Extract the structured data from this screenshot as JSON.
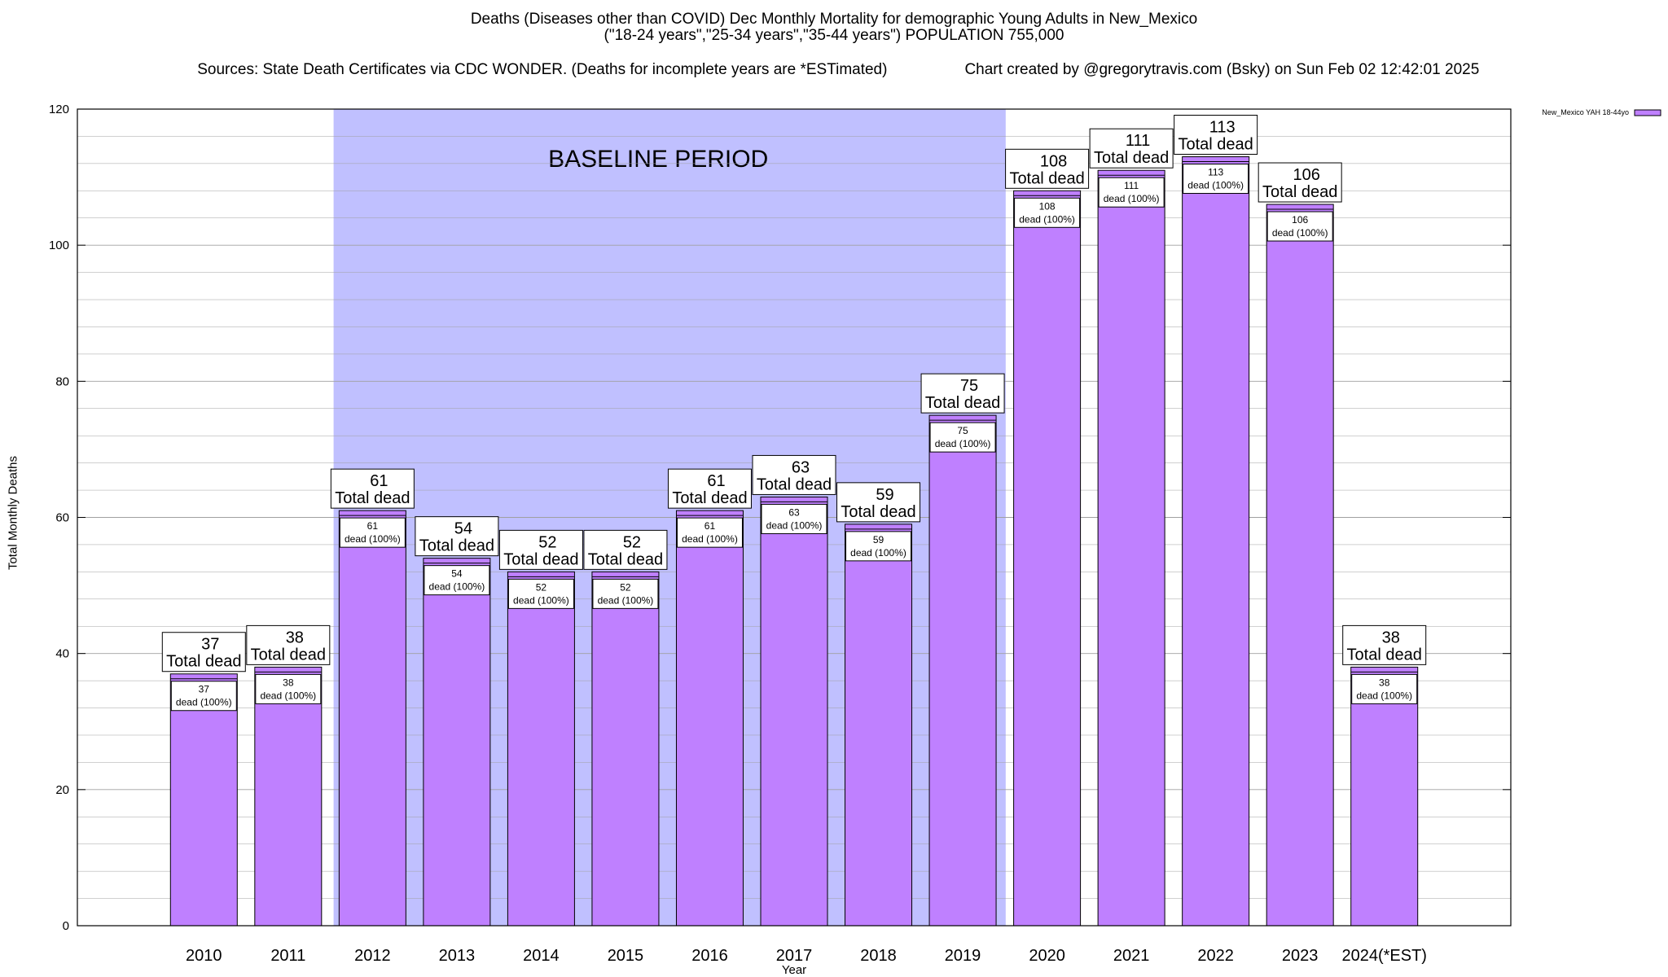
{
  "chart_data": {
    "type": "bar",
    "title": "Deaths (Diseases other than COVID) Dec Monthly Mortality for demographic Young Adults in New_Mexico",
    "subtitle": "(\"18-24 years\",\"25-34 years\",\"35-44 years\") POPULATION 755,000",
    "sources": "Sources: State Death Certificates via CDC WONDER. (Deaths for incomplete years are *ESTimated)",
    "credit": "Chart created by @gregorytravis.com (Bsky) on Sun Feb 02 12:42:01 2025",
    "xlabel": "Year",
    "ylabel": "Total Monthly Deaths",
    "ylim": [
      0,
      120
    ],
    "yticks": [
      0,
      20,
      40,
      60,
      80,
      100,
      120
    ],
    "categories": [
      "2010",
      "2011",
      "2012",
      "2013",
      "2014",
      "2015",
      "2016",
      "2017",
      "2018",
      "2019",
      "2020",
      "2021",
      "2022",
      "2023",
      "2024(*EST)"
    ],
    "series": [
      {
        "name": "New_Mexico YAH 18-44yo",
        "values": [
          37,
          38,
          61,
          54,
          52,
          52,
          61,
          63,
          59,
          75,
          108,
          111,
          113,
          106,
          38
        ]
      }
    ],
    "total_label": "Total dead",
    "inner_label": "dead (100%)",
    "baseline": {
      "label": "BASELINE PERIOD",
      "start": "2012",
      "end": "2019"
    },
    "colors": {
      "bar": "#bf80ff",
      "bar_border": "#000000",
      "baseline": "#c0c0ff",
      "grid": "#a0a0a0"
    },
    "legend_position": "top-right",
    "grid": true
  }
}
